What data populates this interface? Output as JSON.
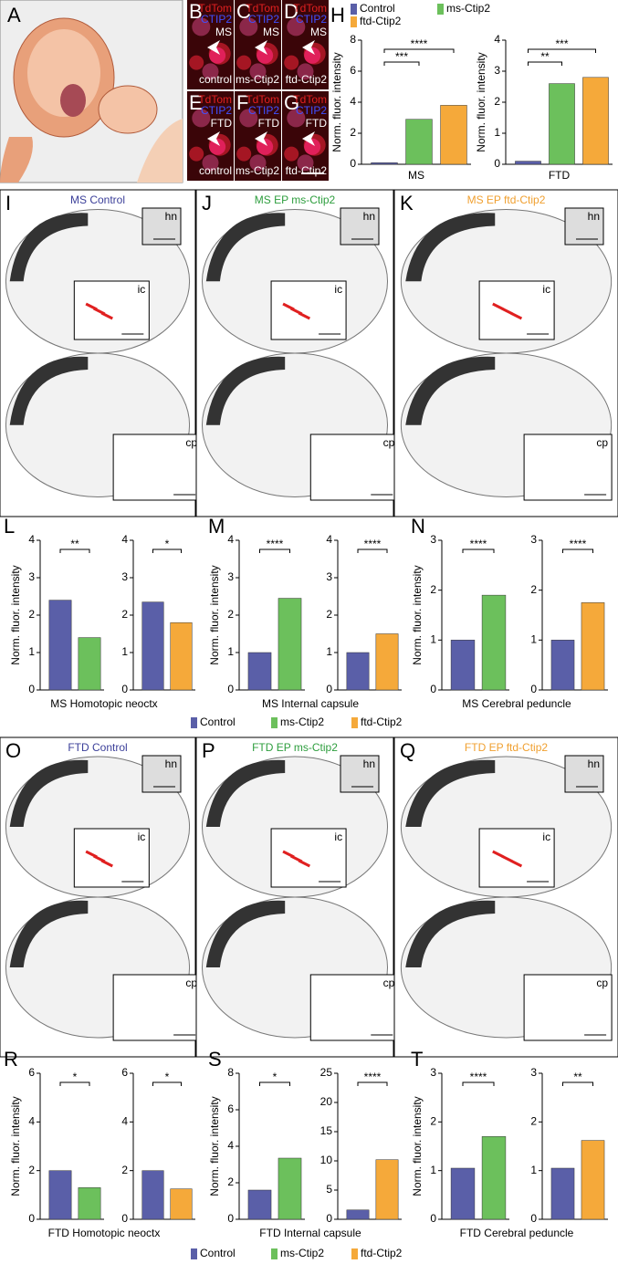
{
  "panel_a": {
    "letter": "A"
  },
  "micro_labels": {
    "red": "TdTom",
    "blue": "CTIP2"
  },
  "micro_panels": [
    {
      "letter": "B",
      "condition": "MS",
      "construct": "control"
    },
    {
      "letter": "C",
      "condition": "MS",
      "construct": "ms-Ctip2"
    },
    {
      "letter": "D",
      "condition": "MS",
      "construct": "ftd-Ctip2"
    },
    {
      "letter": "E",
      "condition": "FTD",
      "construct": "control"
    },
    {
      "letter": "F",
      "condition": "FTD",
      "construct": "ms-Ctip2"
    },
    {
      "letter": "G",
      "condition": "FTD",
      "construct": "ftd-Ctip2"
    }
  ],
  "brain_panels": [
    {
      "letter": "I",
      "title": "MS Control",
      "title_color": "#3b3f99",
      "insets": [
        "hn",
        "ic",
        "cp"
      ]
    },
    {
      "letter": "J",
      "title": "MS EP ms-Ctip2",
      "title_color": "#2e9e3e",
      "insets": [
        "hn",
        "ic",
        "cp"
      ]
    },
    {
      "letter": "K",
      "title": "MS EP ftd-Ctip2",
      "title_color": "#f0a030",
      "insets": [
        "hn",
        "ic",
        "cp"
      ]
    },
    {
      "letter": "O",
      "title": "FTD Control",
      "title_color": "#3b3f99",
      "insets": [
        "hn",
        "ic",
        "cp"
      ]
    },
    {
      "letter": "P",
      "title": "FTD EP ms-Ctip2",
      "title_color": "#2e9e3e",
      "insets": [
        "hn",
        "ic",
        "cp"
      ]
    },
    {
      "letter": "Q",
      "title": "FTD EP ftd-Ctip2",
      "title_color": "#f0a030",
      "insets": [
        "hn",
        "ic",
        "cp"
      ]
    }
  ],
  "legend": [
    {
      "name": "Control",
      "color": "#5a5fa8"
    },
    {
      "name": "ms-Ctip2",
      "color": "#6cc05c"
    },
    {
      "name": "ftd-Ctip2",
      "color": "#f5a93a"
    }
  ],
  "chart_groups": [
    {
      "letter": "H"
    },
    {
      "letter": "L",
      "caption": "MS Homotopic neoctx"
    },
    {
      "letter": "M",
      "caption": "MS Internal capsule"
    },
    {
      "letter": "N",
      "caption": "MS Cerebral peduncle"
    },
    {
      "letter": "R",
      "caption": "FTD Homotopic neoctx"
    },
    {
      "letter": "S",
      "caption": "FTD Internal capsule"
    },
    {
      "letter": "T",
      "caption": "FTD Cerebral peduncle"
    }
  ],
  "chart_data": [
    {
      "type": "bar",
      "ylabel": "Norm. fluor. intensity",
      "xlabel": "MS",
      "values": [
        0.1,
        2.9,
        3.8
      ],
      "colors": [
        "#5a5fa8",
        "#6cc05c",
        "#f5a93a"
      ],
      "ylim": [
        0,
        8
      ],
      "yticks": [
        0,
        2,
        4,
        6,
        8
      ],
      "annotations": [
        "***",
        "****"
      ]
    },
    {
      "type": "bar",
      "ylabel": "Norm. fluor. intensity",
      "xlabel": "FTD",
      "values": [
        0.1,
        2.6,
        2.8
      ],
      "colors": [
        "#5a5fa8",
        "#6cc05c",
        "#f5a93a"
      ],
      "ylim": [
        0,
        4
      ],
      "yticks": [
        0,
        1,
        2,
        3,
        4
      ],
      "annotations": [
        "**",
        "***"
      ]
    },
    {
      "type": "bar",
      "ylabel": "Norm. fluor. intensity",
      "values": [
        2.4,
        1.4
      ],
      "colors": [
        "#5a5fa8",
        "#6cc05c"
      ],
      "ylim": [
        0,
        4
      ],
      "yticks": [
        0,
        1,
        2,
        3,
        4
      ],
      "annotations": [
        "**"
      ]
    },
    {
      "type": "bar",
      "values": [
        2.35,
        1.8
      ],
      "colors": [
        "#5a5fa8",
        "#f5a93a"
      ],
      "ylim": [
        0,
        4
      ],
      "yticks": [
        0,
        1,
        2,
        3,
        4
      ],
      "annotations": [
        "*"
      ]
    },
    {
      "type": "bar",
      "ylabel": "Norm. fluor. intensity",
      "values": [
        1.0,
        2.45
      ],
      "colors": [
        "#5a5fa8",
        "#6cc05c"
      ],
      "ylim": [
        0,
        4
      ],
      "yticks": [
        0,
        1,
        2,
        3,
        4
      ],
      "annotations": [
        "****"
      ]
    },
    {
      "type": "bar",
      "values": [
        1.0,
        1.5
      ],
      "colors": [
        "#5a5fa8",
        "#f5a93a"
      ],
      "ylim": [
        0,
        4
      ],
      "yticks": [
        0,
        1,
        2,
        3,
        4
      ],
      "annotations": [
        "****"
      ]
    },
    {
      "type": "bar",
      "ylabel": "Norm. fluor. intensity",
      "values": [
        1.0,
        1.9
      ],
      "colors": [
        "#5a5fa8",
        "#6cc05c"
      ],
      "ylim": [
        0,
        3
      ],
      "yticks": [
        0,
        1,
        2,
        3
      ],
      "annotations": [
        "****"
      ]
    },
    {
      "type": "bar",
      "values": [
        1.0,
        1.75
      ],
      "colors": [
        "#5a5fa8",
        "#f5a93a"
      ],
      "ylim": [
        0,
        3
      ],
      "yticks": [
        0,
        1,
        2,
        3
      ],
      "annotations": [
        "****"
      ]
    },
    {
      "type": "bar",
      "ylabel": "Norm. fluor. intensity",
      "values": [
        2.0,
        1.3
      ],
      "colors": [
        "#5a5fa8",
        "#6cc05c"
      ],
      "ylim": [
        0,
        6
      ],
      "yticks": [
        0,
        2,
        4,
        6
      ],
      "annotations": [
        "*"
      ]
    },
    {
      "type": "bar",
      "values": [
        2.0,
        1.25
      ],
      "colors": [
        "#5a5fa8",
        "#f5a93a"
      ],
      "ylim": [
        0,
        6
      ],
      "yticks": [
        0,
        2,
        4,
        6
      ],
      "annotations": [
        "*"
      ]
    },
    {
      "type": "bar",
      "ylabel": "Norm. fluor. intensity",
      "values": [
        1.6,
        3.35
      ],
      "colors": [
        "#5a5fa8",
        "#6cc05c"
      ],
      "ylim": [
        0,
        8
      ],
      "yticks": [
        0,
        2,
        4,
        6,
        8
      ],
      "annotations": [
        "*"
      ]
    },
    {
      "type": "bar",
      "values": [
        1.6,
        10.2
      ],
      "colors": [
        "#5a5fa8",
        "#f5a93a"
      ],
      "ylim": [
        0,
        25
      ],
      "yticks": [
        0,
        5,
        10,
        15,
        20,
        25
      ],
      "annotations": [
        "****"
      ]
    },
    {
      "type": "bar",
      "ylabel": "Norm. fluor. intensity",
      "values": [
        1.05,
        1.7
      ],
      "colors": [
        "#5a5fa8",
        "#6cc05c"
      ],
      "ylim": [
        0,
        3
      ],
      "yticks": [
        0,
        1,
        2,
        3
      ],
      "annotations": [
        "****"
      ]
    },
    {
      "type": "bar",
      "values": [
        1.05,
        1.62
      ],
      "colors": [
        "#5a5fa8",
        "#f5a93a"
      ],
      "ylim": [
        0,
        3
      ],
      "yticks": [
        0,
        1,
        2,
        3
      ],
      "annotations": [
        "**"
      ]
    }
  ]
}
